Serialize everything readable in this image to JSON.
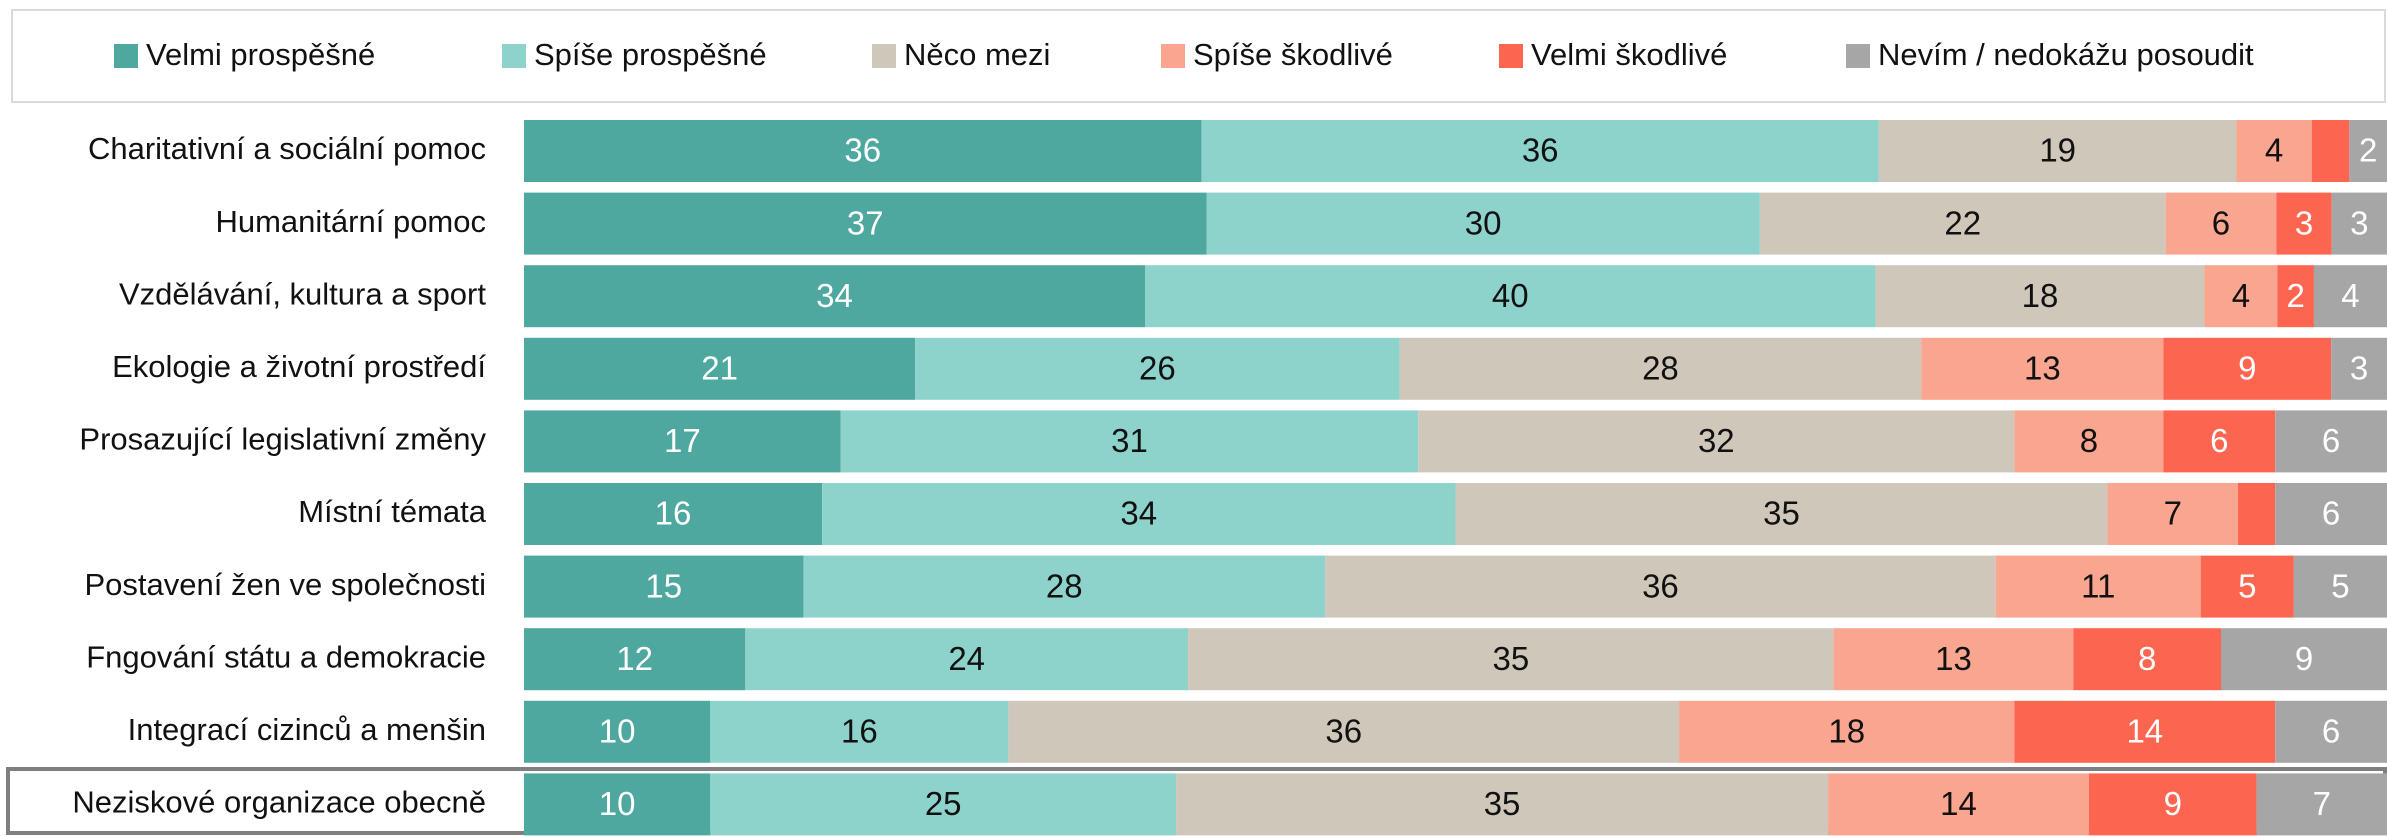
{
  "chart_data": {
    "type": "bar",
    "orientation": "horizontal",
    "stacked": true,
    "categories": [
      "Charitativní a sociální pomoc",
      "Humanitární pomoc",
      "Vzdělávání, kultura a sport",
      "Ekologie a životní prostředí",
      "Prosazující legislativní změny",
      "Místní témata",
      "Postavení žen ve společnosti",
      "Fngování státu a demokracie",
      "Integrací cizinců a menšin",
      "Neziskové organizace obecně"
    ],
    "series": [
      {
        "name": "Velmi prospěšné",
        "color": "#4ea89f",
        "values": [
          36,
          37,
          34,
          21,
          17,
          16,
          15,
          12,
          10,
          10
        ]
      },
      {
        "name": "Spíše prospěšné",
        "color": "#8dd3cc",
        "values": [
          36,
          30,
          40,
          26,
          31,
          34,
          28,
          24,
          16,
          25
        ]
      },
      {
        "name": "Něco mezi",
        "color": "#d0c7bb",
        "values": [
          19,
          22,
          18,
          28,
          32,
          35,
          36,
          35,
          36,
          35
        ]
      },
      {
        "name": "Spíše škodlivé",
        "color": "#f9a590",
        "values": [
          4,
          6,
          4,
          13,
          8,
          7,
          11,
          13,
          18,
          14
        ]
      },
      {
        "name": "Velmi škodlivé",
        "color": "#fc6651",
        "values": [
          2,
          3,
          2,
          9,
          6,
          2,
          5,
          8,
          14,
          9
        ],
        "value_labels": [
          null,
          "3",
          "2",
          "9",
          "6",
          null,
          "5",
          "8",
          "14",
          "9"
        ]
      },
      {
        "name": "Nevím / nedokážu posoudit",
        "color": "#a6a6a6",
        "values": [
          2,
          3,
          4,
          3,
          6,
          6,
          5,
          9,
          6,
          7
        ]
      }
    ]
  }
}
